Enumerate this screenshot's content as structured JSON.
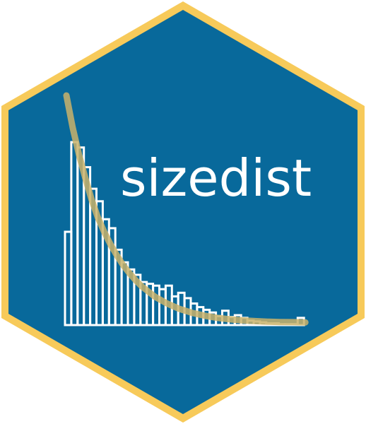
{
  "logo": {
    "title": "sizedist",
    "colors": {
      "hex_fill": "#08699b",
      "hex_border": "#f7ca5a",
      "bars": "#ffffff",
      "curve": "#c9b36b"
    },
    "histogram": {
      "type": "bar",
      "values": [
        5.2,
        10.2,
        9.9,
        8.8,
        7.6,
        6.9,
        5.9,
        5.4,
        4.2,
        3.5,
        3.1,
        2.8,
        2.4,
        2.3,
        2.2,
        2.0,
        2.2,
        1.6,
        1.8,
        1.5,
        1.2,
        1.0,
        0.85,
        0.7,
        0.5,
        0.8,
        0.45,
        0.55,
        0.4,
        0.25,
        0.2,
        0.15,
        0.1,
        0.1,
        0.05,
        0.05,
        0.05,
        0.4
      ],
      "ylim": [
        0,
        13
      ]
    },
    "curve": {
      "type": "line",
      "x": [
        0,
        1,
        2,
        3,
        4,
        5,
        6,
        7,
        8,
        9,
        10,
        11,
        12,
        14,
        16,
        18,
        20,
        22,
        24,
        26,
        28,
        30,
        32,
        34,
        36,
        38
      ],
      "y": [
        12.8,
        11.0,
        9.5,
        8.2,
        7.0,
        6.0,
        5.2,
        4.5,
        3.9,
        3.35,
        2.9,
        2.5,
        2.15,
        1.6,
        1.2,
        0.9,
        0.68,
        0.52,
        0.4,
        0.32,
        0.26,
        0.22,
        0.19,
        0.17,
        0.16,
        0.15
      ]
    }
  }
}
